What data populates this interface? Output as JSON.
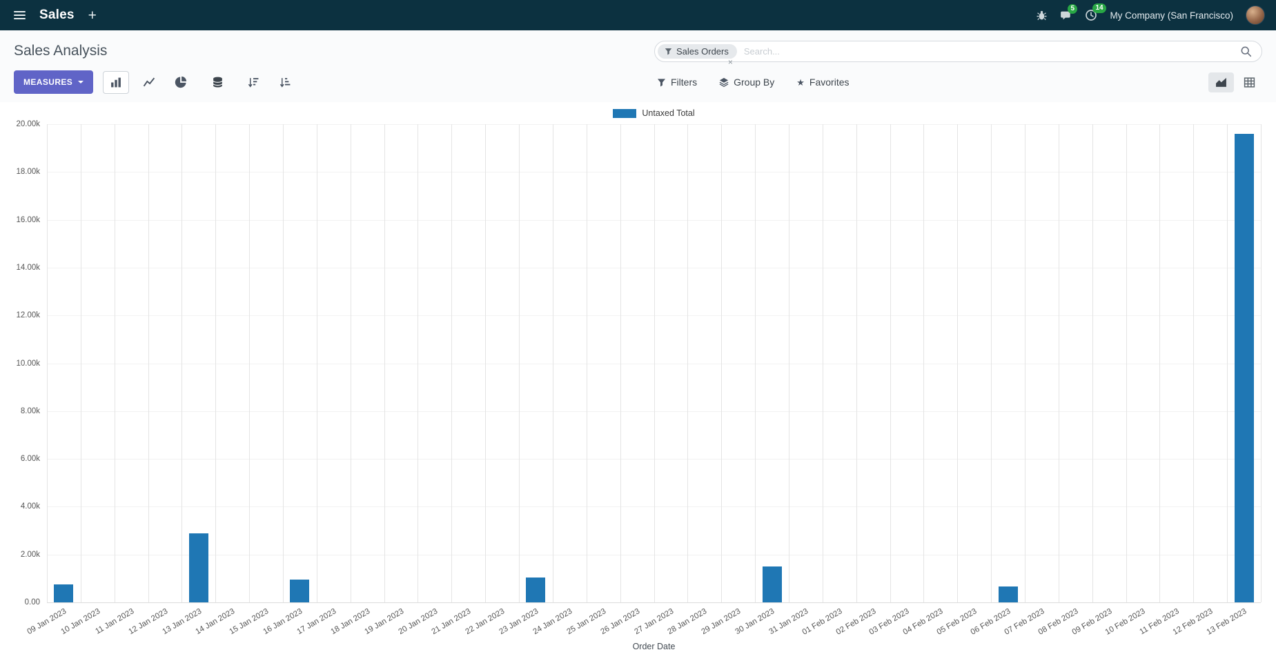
{
  "nav": {
    "app_name": "Sales",
    "chat_badge": "5",
    "activity_badge": "14",
    "company": "My Company (San Francisco)"
  },
  "icons": {
    "plus": "+",
    "star": "★",
    "facet_remove": "×"
  },
  "control_panel": {
    "title": "Sales Analysis",
    "measures_label": "MEASURES",
    "filters_label": "Filters",
    "group_by_label": "Group By",
    "favorites_label": "Favorites",
    "search": {
      "facet": "Sales Orders",
      "placeholder": "Search..."
    }
  },
  "chart_data": {
    "type": "bar",
    "title": "",
    "xlabel": "Order Date",
    "ylabel": "",
    "ylim": [
      0,
      20000
    ],
    "grid": true,
    "legend_position": "top",
    "legend": [
      {
        "label": "Untaxed Total",
        "color": "#1f77b4"
      }
    ],
    "series_color": "#1f77b4",
    "y_ticks": [
      "0.00",
      "2.00k",
      "4.00k",
      "6.00k",
      "8.00k",
      "10.00k",
      "12.00k",
      "14.00k",
      "16.00k",
      "18.00k",
      "20.00k"
    ],
    "categories": [
      "09 Jan 2023",
      "10 Jan 2023",
      "11 Jan 2023",
      "12 Jan 2023",
      "13 Jan 2023",
      "14 Jan 2023",
      "15 Jan 2023",
      "16 Jan 2023",
      "17 Jan 2023",
      "18 Jan 2023",
      "19 Jan 2023",
      "20 Jan 2023",
      "21 Jan 2023",
      "22 Jan 2023",
      "23 Jan 2023",
      "24 Jan 2023",
      "25 Jan 2023",
      "26 Jan 2023",
      "27 Jan 2023",
      "28 Jan 2023",
      "29 Jan 2023",
      "30 Jan 2023",
      "31 Jan 2023",
      "01 Feb 2023",
      "02 Feb 2023",
      "03 Feb 2023",
      "04 Feb 2023",
      "05 Feb 2023",
      "06 Feb 2023",
      "07 Feb 2023",
      "08 Feb 2023",
      "09 Feb 2023",
      "10 Feb 2023",
      "11 Feb 2023",
      "12 Feb 2023",
      "13 Feb 2023"
    ],
    "values": [
      750,
      0,
      0,
      0,
      2900,
      0,
      0,
      950,
      0,
      0,
      0,
      0,
      0,
      0,
      1050,
      0,
      0,
      0,
      0,
      0,
      0,
      1500,
      0,
      0,
      0,
      0,
      0,
      0,
      650,
      0,
      0,
      0,
      0,
      0,
      0,
      19600
    ]
  }
}
